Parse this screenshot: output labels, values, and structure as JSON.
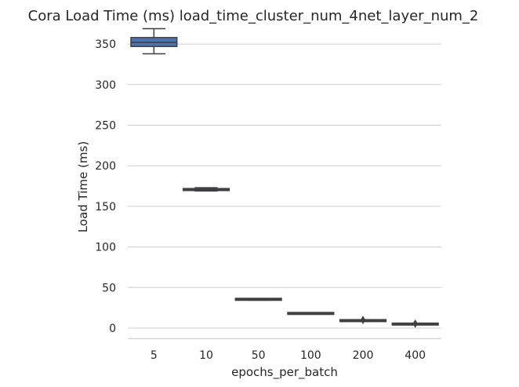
{
  "chart_data": {
    "type": "box",
    "title": "Cora Load Time (ms) load_time_cluster_num_4net_layer_num_2",
    "xlabel": "epochs_per_batch",
    "ylabel": "Load Time (ms)",
    "ylim": [
      -13,
      372
    ],
    "yticks": [
      0,
      50,
      100,
      150,
      200,
      250,
      300,
      350
    ],
    "grid": "horizontal",
    "categories": [
      "5",
      "10",
      "50",
      "100",
      "200",
      "400"
    ],
    "boxes": [
      {
        "category": "5",
        "whisker_low": 338,
        "q1": 347,
        "median": 352,
        "q3": 358,
        "whisker_high": 369,
        "outliers": []
      },
      {
        "category": "10",
        "whisker_low": 169,
        "q1": 169.5,
        "median": 170.5,
        "q3": 172,
        "whisker_high": 173,
        "outliers": []
      },
      {
        "category": "50",
        "whisker_low": 34.5,
        "q1": 35,
        "median": 35.5,
        "q3": 36,
        "whisker_high": 36.5,
        "outliers": []
      },
      {
        "category": "100",
        "whisker_low": 17.8,
        "q1": 18,
        "median": 18,
        "q3": 18.2,
        "whisker_high": 18.4,
        "outliers": []
      },
      {
        "category": "200",
        "whisker_low": 8.6,
        "q1": 9,
        "median": 9.2,
        "q3": 9.5,
        "whisker_high": 9.8,
        "outliers": [
          10
        ]
      },
      {
        "category": "400",
        "whisker_low": 4.6,
        "q1": 4.8,
        "median": 5,
        "q3": 5.2,
        "whisker_high": 5.4,
        "outliers": [
          5.5
        ]
      }
    ],
    "box_color": "#4c72b0",
    "line_color": "#3f3f3f",
    "grid_color": "#cccccc"
  }
}
